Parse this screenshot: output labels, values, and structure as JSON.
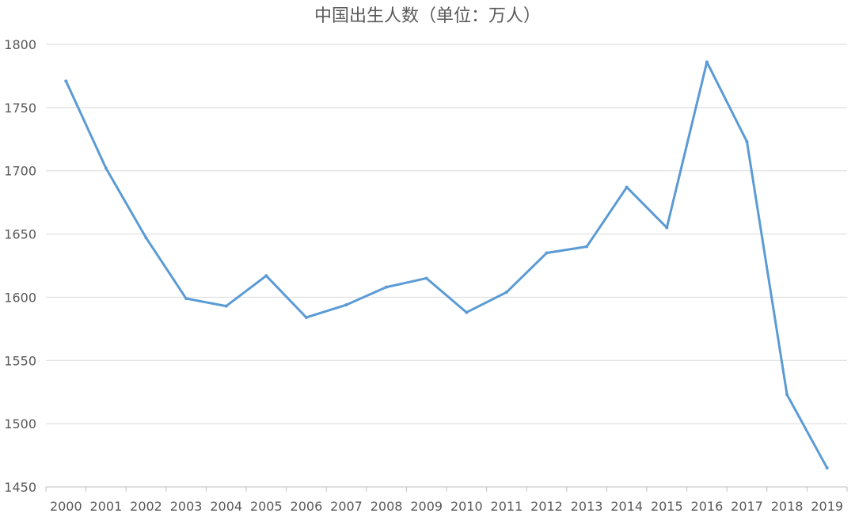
{
  "chart_data": {
    "type": "line",
    "title": "中国出生人数（单位：万人）",
    "xlabel": "",
    "ylabel": "",
    "x": [
      "2000",
      "2001",
      "2002",
      "2003",
      "2004",
      "2005",
      "2006",
      "2007",
      "2008",
      "2009",
      "2010",
      "2011",
      "2012",
      "2013",
      "2014",
      "2015",
      "2016",
      "2017",
      "2018",
      "2019"
    ],
    "series": [
      {
        "values": [
          1771,
          1702,
          1647,
          1599,
          1593,
          1617,
          1584,
          1594,
          1608,
          1615,
          1588,
          1604,
          1635,
          1640,
          1687,
          1655,
          1786,
          1723,
          1523,
          1465
        ]
      }
    ],
    "ylim": [
      1450,
      1800
    ],
    "yticks": [
      1450,
      1500,
      1550,
      1600,
      1650,
      1700,
      1750,
      1800
    ],
    "grid": true,
    "legend": "none",
    "colors": {
      "series": "#5b9bd5"
    }
  }
}
